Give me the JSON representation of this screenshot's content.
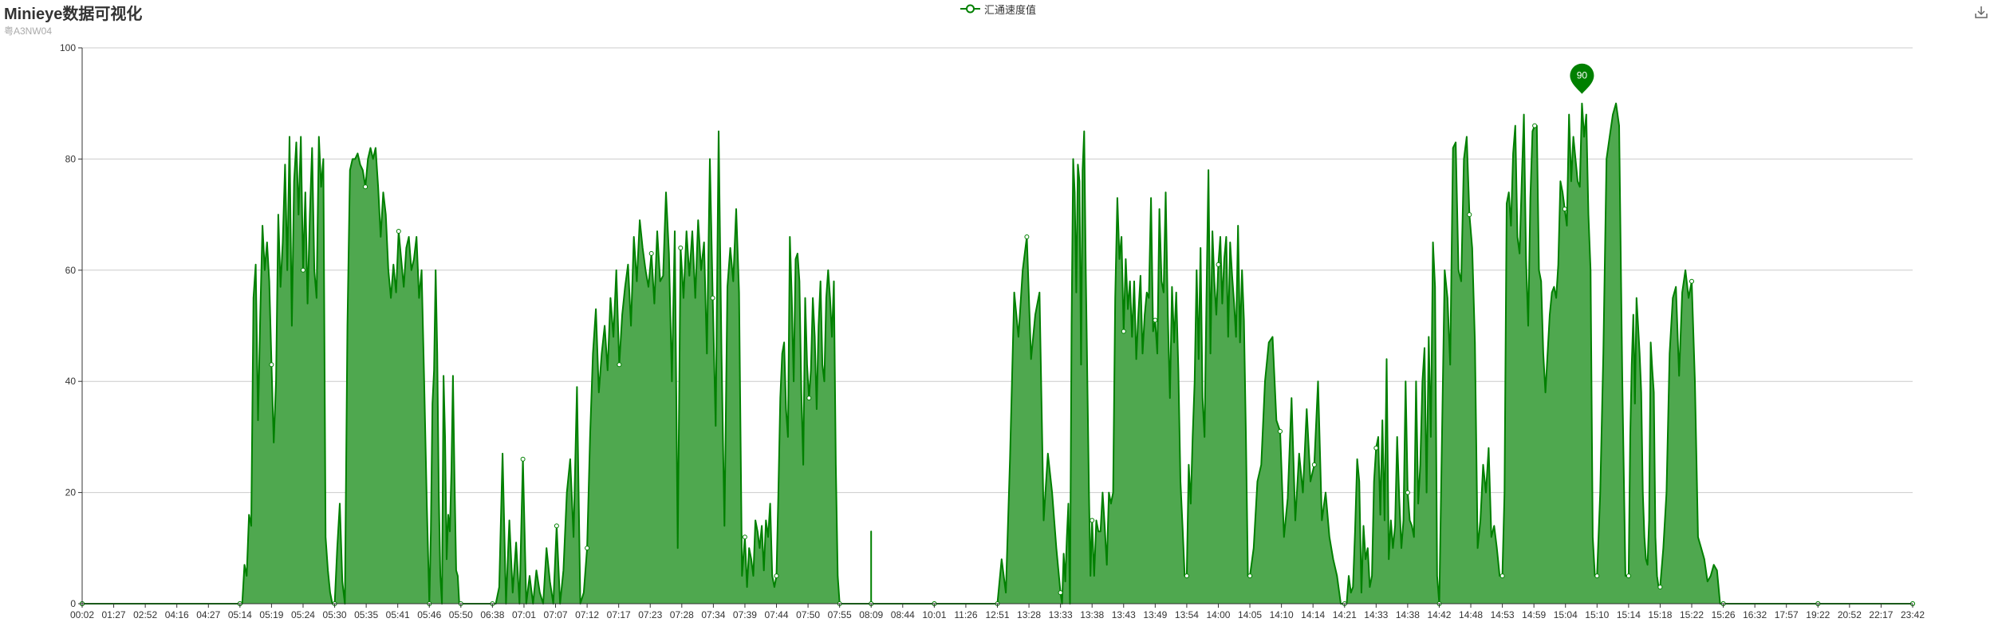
{
  "title": "Minieye数据可视化",
  "subtitle": "粤A3NW04",
  "legend_label": "汇通速度值",
  "toolbox_icon": "download-icon",
  "colors": {
    "series": "#008000",
    "area": "#4fa84f",
    "grid": "#cccccc",
    "axis": "#333333",
    "marker_label": "#ffffff"
  },
  "chart_data": {
    "type": "area",
    "title": "Minieye数据可视化",
    "subtitle": "粤A3NW04",
    "xlabel": "",
    "ylabel": "",
    "ylim": [
      0,
      100
    ],
    "yticks": [
      0,
      20,
      40,
      60,
      80,
      100
    ],
    "grid": true,
    "legend_position": "top-center",
    "x_tick_labels": [
      "00:02",
      "01:27",
      "02:52",
      "04:16",
      "04:27",
      "05:14",
      "05:19",
      "05:24",
      "05:30",
      "05:35",
      "05:41",
      "05:46",
      "05:50",
      "06:38",
      "07:01",
      "07:07",
      "07:12",
      "07:17",
      "07:23",
      "07:28",
      "07:34",
      "07:39",
      "07:44",
      "07:50",
      "07:55",
      "08:09",
      "08:44",
      "10:01",
      "11:26",
      "12:51",
      "13:28",
      "13:33",
      "13:38",
      "13:43",
      "13:49",
      "13:54",
      "14:00",
      "14:05",
      "14:10",
      "14:14",
      "14:21",
      "14:33",
      "14:38",
      "14:42",
      "14:48",
      "14:53",
      "14:59",
      "15:04",
      "15:10",
      "15:14",
      "15:18",
      "15:22",
      "15:26",
      "16:32",
      "17:57",
      "19:22",
      "20:52",
      "22:17",
      "23:42"
    ],
    "max_marker": {
      "label": "90",
      "value": 90
    },
    "series": [
      {
        "name": "汇通速度值",
        "segments": [
          [
            0,
            0
          ],
          [
            5,
            0,
            0,
            7,
            5,
            16,
            14,
            55,
            61,
            33,
            52,
            68,
            60,
            65,
            58,
            43,
            29,
            40,
            70,
            57,
            65,
            79,
            60,
            84,
            50,
            76,
            83,
            70,
            84,
            60,
            74,
            54,
            70,
            82,
            60,
            55,
            84,
            75,
            80,
            12,
            6,
            2,
            0
          ],
          [
            8,
            0,
            10,
            18,
            4,
            0,
            50,
            78,
            80,
            80,
            81,
            79,
            78,
            75,
            80,
            82,
            80,
            82,
            75,
            66,
            74,
            70,
            60,
            55,
            61,
            56,
            67,
            62,
            57,
            64,
            66,
            60,
            62,
            66,
            55,
            60,
            40,
            18
          ],
          [
            11,
            0,
            13,
            36,
            42,
            60,
            45,
            20,
            5,
            0,
            41,
            30,
            8,
            16,
            13,
            24,
            41,
            22,
            6,
            5,
            0
          ],
          [
            12,
            0
          ],
          [
            13,
            0,
            0,
            3,
            27,
            0,
            15,
            2,
            11,
            0,
            26,
            0,
            5,
            0,
            6,
            2,
            0,
            10,
            4,
            0,
            14,
            0,
            6,
            20,
            26,
            12,
            39,
            0,
            2
          ],
          [
            16,
            10,
            30,
            45,
            53,
            38,
            45,
            50,
            42,
            55,
            48,
            60,
            43,
            52,
            57,
            61,
            50,
            66,
            58,
            69,
            64,
            60,
            57,
            63,
            54,
            67,
            58,
            59,
            74,
            63,
            40,
            67,
            10,
            64,
            55,
            67,
            59,
            67,
            55,
            69,
            60,
            65,
            45,
            80,
            55,
            32,
            85,
            45,
            14,
            57,
            64,
            58,
            71,
            56,
            5
          ],
          [
            21,
            12,
            3,
            10,
            8,
            5,
            15,
            13,
            10,
            14,
            6,
            15,
            12,
            18,
            5,
            3
          ],
          [
            22,
            5,
            20,
            37,
            45,
            47,
            35,
            30,
            66,
            55,
            40,
            62,
            63,
            58,
            38,
            25,
            55,
            43,
            37,
            42,
            55,
            48,
            35,
            50,
            58,
            43,
            40,
            55,
            60,
            55,
            48,
            58,
            25,
            5
          ],
          [
            24,
            0
          ],
          [
            25,
            0,
            0,
            10,
            8,
            6,
            13,
            0
          ],
          [
            25,
            0,
            0
          ],
          [
            29,
            0,
            8,
            2,
            26,
            56,
            48,
            60,
            66,
            44,
            52,
            56,
            15,
            27,
            20,
            10
          ],
          [
            31,
            2,
            0,
            9,
            4,
            12,
            18,
            0,
            50,
            80,
            74,
            56,
            79,
            76,
            43,
            78,
            85,
            60,
            40,
            20,
            5
          ],
          [
            32,
            15,
            5,
            15,
            13,
            13,
            20,
            14,
            7,
            20,
            18,
            20,
            55,
            73,
            62,
            66,
            49,
            62,
            53,
            58,
            48,
            58,
            44,
            52,
            59,
            45,
            52,
            56,
            55,
            73,
            49,
            51,
            45,
            71,
            58,
            56,
            74,
            52,
            37,
            57,
            47,
            56,
            42,
            22,
            14,
            5
          ],
          [
            35,
            5,
            25,
            18,
            30,
            40,
            60,
            44,
            64,
            37,
            30,
            55,
            78,
            45,
            67,
            58,
            52,
            61,
            66,
            54,
            62,
            66,
            48,
            65,
            59,
            54,
            48,
            68,
            47,
            60,
            51,
            30,
            5
          ],
          [
            37,
            5,
            10,
            22,
            25,
            40,
            47,
            48,
            33,
            31,
            12,
            19,
            37,
            15,
            27,
            20,
            35,
            22,
            25,
            40,
            15,
            20,
            12,
            8,
            5,
            0
          ],
          [
            40,
            0,
            0,
            5,
            2,
            3,
            13,
            26,
            22,
            2,
            14,
            8,
            10,
            3,
            5,
            22,
            28,
            30,
            16,
            33,
            15,
            44,
            8,
            15,
            10,
            14,
            30,
            19,
            10,
            15,
            40,
            20,
            15,
            14,
            12,
            40,
            18,
            25,
            40,
            46,
            20,
            48,
            30,
            65,
            57,
            5
          ],
          [
            43,
            0,
            30,
            60,
            55,
            43,
            82,
            83,
            60,
            58,
            80,
            84,
            70,
            64,
            47,
            10,
            15,
            25,
            20,
            28,
            12,
            14,
            10,
            5
          ],
          [
            45,
            5,
            20,
            72,
            74,
            68,
            81,
            86,
            66,
            63,
            76,
            88,
            62,
            50,
            73,
            85,
            86,
            86,
            60,
            58,
            45,
            38,
            45,
            52,
            56,
            57,
            55,
            61,
            76,
            74,
            71,
            68,
            88,
            76,
            84,
            80,
            76,
            75,
            90,
            84,
            88,
            70,
            60,
            12,
            5
          ],
          [
            48,
            5,
            20,
            45,
            80,
            84,
            88,
            90,
            86,
            40,
            5
          ],
          [
            49,
            5,
            30,
            43,
            52,
            36,
            55,
            50,
            45,
            38,
            20,
            12,
            8,
            7,
            15,
            47,
            42,
            38,
            12,
            5,
            3
          ],
          [
            50,
            3,
            10,
            20,
            45,
            55,
            57,
            41,
            56,
            60,
            55,
            58,
            40,
            12,
            10,
            8,
            4,
            5,
            7,
            6,
            0
          ],
          [
            52,
            0,
            0
          ],
          [
            58,
            0
          ]
        ]
      }
    ]
  }
}
